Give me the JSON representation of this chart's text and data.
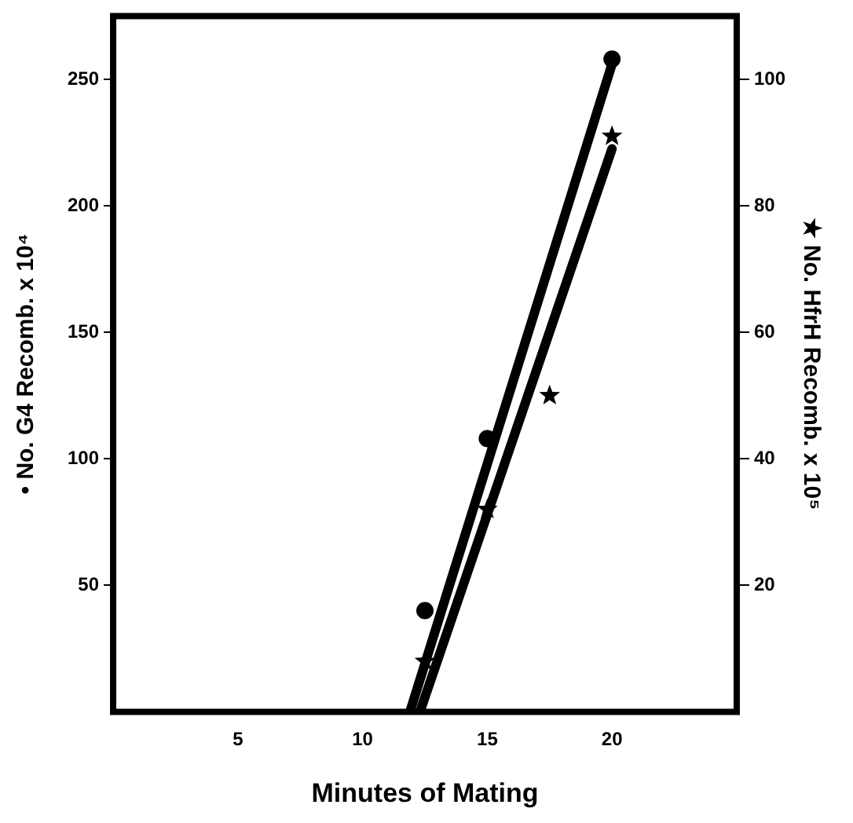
{
  "chart_data": {
    "type": "scatter",
    "xlabel": "Minutes of Mating",
    "ylabel": "• No. G4 Recomb. x 10⁴",
    "y2label": "★ No. HfrH Recomb. x 10⁵",
    "xlim": [
      0,
      25
    ],
    "xticks": [
      5,
      10,
      15,
      20
    ],
    "ylim": [
      0,
      275
    ],
    "yticks": [
      50,
      100,
      150,
      200,
      250
    ],
    "y2lim": [
      0,
      110
    ],
    "y2ticks": [
      20,
      40,
      60,
      80,
      100
    ],
    "grid": false,
    "legend": false,
    "series": [
      {
        "marker": "circle",
        "color": "#000000",
        "x": [
          12.5,
          15,
          20
        ],
        "values": [
          40,
          108,
          258
        ]
      },
      {
        "marker": "star",
        "axis": "y2",
        "color": "#000000",
        "x": [
          12.5,
          15,
          17.5,
          20
        ],
        "values": [
          8,
          32,
          50,
          91
        ]
      },
      {
        "type": "line",
        "marker": "none",
        "color": "#000000",
        "x": [
          11.9,
          20
        ],
        "values": [
          0,
          256
        ]
      },
      {
        "type": "line",
        "marker": "none",
        "axis": "y2",
        "color": "#000000",
        "x": [
          12.3,
          20
        ],
        "values": [
          0,
          89
        ]
      }
    ]
  }
}
